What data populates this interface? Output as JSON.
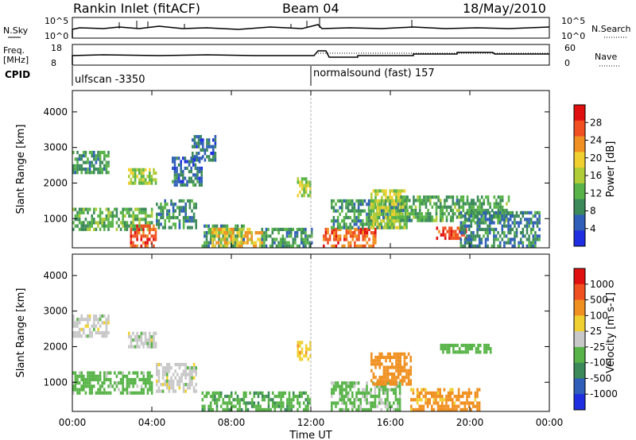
{
  "header": {
    "station": "Rankin Inlet (fitACF)",
    "beam": "Beam 04",
    "date": "18/May/2010"
  },
  "params": {
    "nsky_label": "N.Sky",
    "nsky_ticks": [
      "10^5",
      "10^0"
    ],
    "nsearch_label": "N.Search",
    "freq_label_line1": "Freq.",
    "freq_label_line2": "[MHz]",
    "freq_ticks": [
      "18",
      "8"
    ],
    "nave_ticks": [
      "60",
      "0"
    ],
    "nave_label": "Nave",
    "cpid_label": "CPID",
    "cpid_segments": [
      {
        "label": "ulfscan -3350",
        "start_hour": 0
      },
      {
        "label": "normalsound (fast) 157",
        "start_hour": 12
      }
    ]
  },
  "colors": {
    "power_scale": [
      "#1f2ee0",
      "#2f5fb8",
      "#3c8a5a",
      "#58b448",
      "#b0cc36",
      "#f0d030",
      "#f09020",
      "#f05020",
      "#e01010"
    ],
    "velocity_scale": [
      "#1f2ee0",
      "#2f5fb8",
      "#3c8a5a",
      "#58b448",
      "#c8c8c8",
      "#f0d030",
      "#f09020",
      "#f05020",
      "#e01010"
    ],
    "ground_scatter": "#bdbdbd"
  },
  "chart_data": [
    {
      "type": "heatmap",
      "panel": "power",
      "xlabel": "Time UT",
      "ylabel": "Slant Range [km]",
      "xlim": [
        0,
        24
      ],
      "ylim": [
        180,
        4600
      ],
      "x_ticks": [
        "00:00",
        "04:00",
        "08:00",
        "12:00",
        "16:00",
        "20:00",
        "00:00"
      ],
      "x_tick_hours": [
        0,
        4,
        8,
        12,
        16,
        20,
        24
      ],
      "y_ticks": [
        1000,
        2000,
        3000,
        4000
      ],
      "colorbar": {
        "label": "Power [dB]",
        "ticks": [
          4,
          8,
          12,
          16,
          20,
          24,
          28
        ],
        "range": [
          0,
          32
        ]
      },
      "regions": [
        {
          "t0": 0.0,
          "t1": 1.8,
          "r0": 2250,
          "r1": 2850,
          "value": 10
        },
        {
          "t0": 0.0,
          "t1": 4.0,
          "r0": 650,
          "r1": 1300,
          "value": 12
        },
        {
          "t0": 2.8,
          "t1": 4.2,
          "r0": 1950,
          "r1": 2400,
          "value": 15
        },
        {
          "t0": 2.9,
          "t1": 4.2,
          "r0": 180,
          "r1": 750,
          "value": 27
        },
        {
          "t0": 4.2,
          "t1": 6.2,
          "r0": 700,
          "r1": 1500,
          "value": 9
        },
        {
          "t0": 5.0,
          "t1": 6.5,
          "r0": 1900,
          "r1": 2700,
          "value": 7
        },
        {
          "t0": 6.0,
          "t1": 7.2,
          "r0": 2600,
          "r1": 3300,
          "value": 6
        },
        {
          "t0": 6.5,
          "t1": 8.6,
          "r0": 180,
          "r1": 800,
          "value": 10
        },
        {
          "t0": 7.0,
          "t1": 9.5,
          "r0": 180,
          "r1": 700,
          "value": 20
        },
        {
          "t0": 9.5,
          "t1": 12.0,
          "r0": 180,
          "r1": 700,
          "value": 10
        },
        {
          "t0": 11.3,
          "t1": 12.0,
          "r0": 1600,
          "r1": 2100,
          "value": 16
        },
        {
          "t0": 12.6,
          "t1": 15.2,
          "r0": 180,
          "r1": 700,
          "value": 26
        },
        {
          "t0": 13.0,
          "t1": 16.5,
          "r0": 700,
          "r1": 1500,
          "value": 10
        },
        {
          "t0": 15.0,
          "t1": 16.8,
          "r0": 700,
          "r1": 1800,
          "value": 16
        },
        {
          "t0": 16.5,
          "t1": 22.0,
          "r0": 900,
          "r1": 1600,
          "value": 11
        },
        {
          "t0": 18.3,
          "t1": 19.8,
          "r0": 400,
          "r1": 700,
          "value": 28
        },
        {
          "t0": 19.5,
          "t1": 23.5,
          "r0": 180,
          "r1": 1200,
          "value": 8
        }
      ]
    },
    {
      "type": "heatmap",
      "panel": "velocity",
      "xlabel": "Time UT",
      "ylabel": "Slant Range [km]",
      "xlim": [
        0,
        24
      ],
      "ylim": [
        180,
        4600
      ],
      "x_ticks": [
        "00:00",
        "04:00",
        "08:00",
        "12:00",
        "16:00",
        "20:00",
        "00:00"
      ],
      "x_tick_hours": [
        0,
        4,
        8,
        12,
        16,
        20,
        24
      ],
      "y_ticks": [
        1000,
        2000,
        3000,
        4000
      ],
      "colorbar": {
        "label": "Velocity [m s-1]",
        "ticks": [
          "1000",
          "500",
          "100",
          "25",
          "-25",
          "-100",
          "-500",
          "-1000"
        ]
      },
      "regions": [
        {
          "t0": 0.0,
          "t1": 1.8,
          "r0": 2250,
          "r1": 2850,
          "value": 0
        },
        {
          "t0": 0.0,
          "t1": 4.0,
          "r0": 650,
          "r1": 1300,
          "value": 50
        },
        {
          "t0": 2.8,
          "t1": 4.2,
          "r0": 1950,
          "r1": 2400,
          "value": 0
        },
        {
          "t0": 4.2,
          "t1": 6.2,
          "r0": 700,
          "r1": 1500,
          "value": 0
        },
        {
          "t0": 6.5,
          "t1": 12.0,
          "r0": 180,
          "r1": 700,
          "value": 80
        },
        {
          "t0": 11.3,
          "t1": 12.0,
          "r0": 1600,
          "r1": 2100,
          "value": -80
        },
        {
          "t0": 13.0,
          "t1": 16.5,
          "r0": 180,
          "r1": 1000,
          "value": 40
        },
        {
          "t0": 15.0,
          "t1": 17.0,
          "r0": 900,
          "r1": 1800,
          "value": -350
        },
        {
          "t0": 17.0,
          "t1": 20.5,
          "r0": 180,
          "r1": 800,
          "value": -120
        },
        {
          "t0": 18.5,
          "t1": 21.0,
          "r0": 1800,
          "r1": 2050,
          "value": 60
        }
      ]
    }
  ]
}
